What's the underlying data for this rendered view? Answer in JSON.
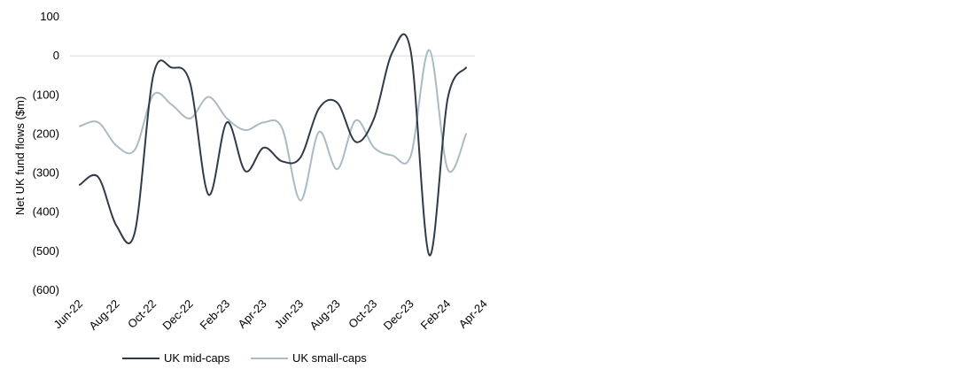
{
  "chart_data": {
    "type": "line",
    "title": "",
    "xlabel": "",
    "ylabel": "Net UK fund flows ($m)",
    "ylim": [
      -600,
      100
    ],
    "yticks": [
      100,
      0,
      -100,
      -200,
      -300,
      -400,
      -500,
      -600
    ],
    "ytick_labels": [
      "100",
      "0",
      "(100)",
      "(200)",
      "(300)",
      "(400)",
      "(500)",
      "(600)"
    ],
    "x": [
      "Jun-22",
      "Jul-22",
      "Aug-22",
      "Sep-22",
      "Oct-22",
      "Nov-22",
      "Dec-22",
      "Jan-23",
      "Feb-23",
      "Mar-23",
      "Apr-23",
      "May-23",
      "Jun-23",
      "Jul-23",
      "Aug-23",
      "Sep-23",
      "Oct-23",
      "Nov-23",
      "Dec-23",
      "Jan-24",
      "Feb-24",
      "Mar-24",
      "Apr-24"
    ],
    "xtick_labels": [
      "Jun-22",
      "Aug-22",
      "Oct-22",
      "Dec-22",
      "Feb-23",
      "Apr-23",
      "Jun-23",
      "Aug-23",
      "Oct-23",
      "Dec-23",
      "Feb-24",
      "Apr-24"
    ],
    "gridline_at": 0,
    "legend_position": "bottom",
    "series": [
      {
        "name": "UK mid-caps",
        "color": "#2f3a4c",
        "values": [
          -330,
          -310,
          -435,
          -450,
          -50,
          -30,
          -70,
          -355,
          -170,
          -295,
          -235,
          -270,
          -260,
          -135,
          -120,
          -220,
          -160,
          10,
          10,
          -510,
          -110,
          -30,
          null
        ]
      },
      {
        "name": "UK small-caps",
        "color": "#a8bcc4",
        "values": [
          -180,
          -170,
          -230,
          -240,
          -100,
          -125,
          -160,
          -105,
          -160,
          -190,
          -170,
          -185,
          -370,
          -195,
          -290,
          -165,
          -235,
          -255,
          -255,
          15,
          -290,
          -200,
          null
        ]
      }
    ]
  }
}
